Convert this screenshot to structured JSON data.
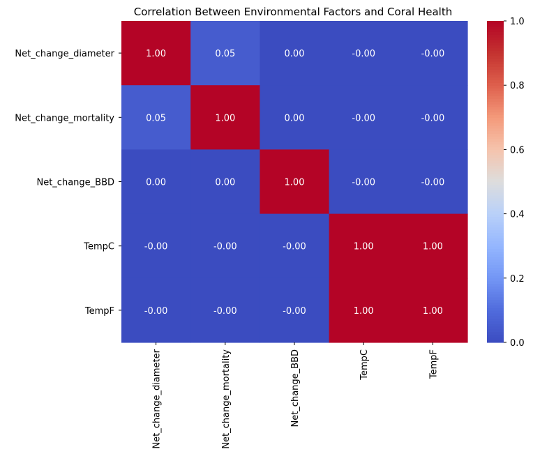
{
  "chart_data": {
    "type": "heatmap",
    "title": "Correlation Between Environmental Factors and Coral Health",
    "xlabel": "",
    "ylabel": "",
    "row_labels": [
      "Net_change_diameter",
      "Net_change_mortality",
      "Net_change_BBD",
      "TempC",
      "TempF"
    ],
    "col_labels": [
      "Net_change_diameter",
      "Net_change_mortality",
      "Net_change_BBD",
      "TempC",
      "TempF"
    ],
    "values": [
      [
        1.0,
        0.05,
        0.0,
        -0.001,
        -0.001
      ],
      [
        0.05,
        1.0,
        0.0,
        -0.001,
        -0.001
      ],
      [
        0.0,
        0.0,
        1.0,
        -0.001,
        -0.001
      ],
      [
        -0.001,
        -0.001,
        -0.001,
        1.0,
        1.0
      ],
      [
        -0.001,
        -0.001,
        -0.001,
        1.0,
        1.0
      ]
    ],
    "annotations": [
      [
        "1.00",
        "0.05",
        "0.00",
        "-0.00",
        "-0.00"
      ],
      [
        "0.05",
        "1.00",
        "0.00",
        "-0.00",
        "-0.00"
      ],
      [
        "0.00",
        "0.00",
        "1.00",
        "-0.00",
        "-0.00"
      ],
      [
        "-0.00",
        "-0.00",
        "-0.00",
        "1.00",
        "1.00"
      ],
      [
        "-0.00",
        "-0.00",
        "-0.00",
        "1.00",
        "1.00"
      ]
    ],
    "colormap": "coolwarm",
    "vmin": 0.0,
    "vmax": 1.0,
    "colorbar_ticks": [
      "0.0",
      "0.2",
      "0.4",
      "0.6",
      "0.8",
      "1.0"
    ],
    "grid": false
  }
}
